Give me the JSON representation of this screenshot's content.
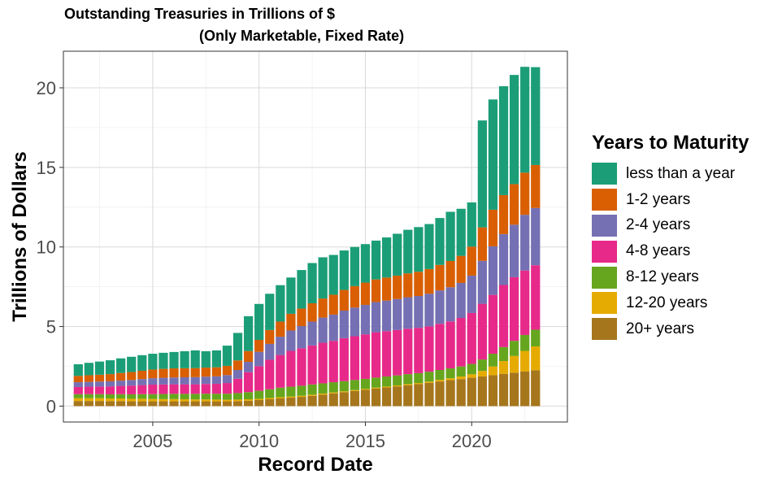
{
  "chart_data": {
    "type": "bar",
    "stacked": true,
    "title": "Outstanding Treasuries in Trillions of $",
    "subtitle": "(Only Marketable, Fixed Rate)",
    "xlabel": "Record Date",
    "ylabel": "Trillions of Dollars",
    "xlim": [
      2000.8,
      2024.5
    ],
    "ylim": [
      -1.0,
      22.3
    ],
    "x_ticks": [
      "2005",
      "2010",
      "2015",
      "2020"
    ],
    "y_ticks": [
      "0",
      "5",
      "10",
      "15",
      "20"
    ],
    "grid": true,
    "legend_position": "right",
    "legend_title": "Years to Maturity",
    "x": [
      2001.5,
      2002,
      2002.5,
      2003,
      2003.5,
      2004,
      2004.5,
      2005,
      2005.5,
      2006,
      2006.5,
      2007,
      2007.5,
      2008,
      2008.5,
      2009,
      2009.5,
      2010,
      2010.5,
      2011,
      2011.5,
      2012,
      2012.5,
      2013,
      2013.5,
      2014,
      2014.5,
      2015,
      2015.5,
      2016,
      2016.5,
      2017,
      2017.5,
      2018,
      2018.5,
      2019,
      2019.5,
      2020,
      2020.5,
      2021,
      2021.5,
      2022,
      2022.5,
      2023
    ],
    "series": [
      {
        "name": "20+ years",
        "color": "#A6761D",
        "values": [
          0.32,
          0.32,
          0.32,
          0.31,
          0.31,
          0.3,
          0.3,
          0.3,
          0.3,
          0.3,
          0.3,
          0.3,
          0.3,
          0.3,
          0.3,
          0.31,
          0.34,
          0.38,
          0.43,
          0.48,
          0.53,
          0.58,
          0.65,
          0.72,
          0.8,
          0.87,
          0.95,
          1.02,
          1.1,
          1.17,
          1.24,
          1.31,
          1.38,
          1.46,
          1.55,
          1.63,
          1.7,
          1.78,
          1.86,
          1.94,
          2.03,
          2.1,
          2.17,
          2.25
        ]
      },
      {
        "name": "12-20 years",
        "color": "#E6AB02",
        "values": [
          0.18,
          0.18,
          0.18,
          0.17,
          0.17,
          0.16,
          0.16,
          0.15,
          0.14,
          0.14,
          0.13,
          0.12,
          0.12,
          0.11,
          0.1,
          0.1,
          0.09,
          0.08,
          0.08,
          0.08,
          0.07,
          0.07,
          0.07,
          0.07,
          0.06,
          0.06,
          0.06,
          0.06,
          0.06,
          0.06,
          0.06,
          0.07,
          0.07,
          0.08,
          0.1,
          0.12,
          0.16,
          0.22,
          0.35,
          0.55,
          0.8,
          1.05,
          1.3,
          1.5
        ]
      },
      {
        "name": "8-12 years",
        "color": "#66A61E",
        "values": [
          0.25,
          0.25,
          0.25,
          0.26,
          0.27,
          0.28,
          0.29,
          0.3,
          0.32,
          0.33,
          0.34,
          0.35,
          0.36,
          0.37,
          0.38,
          0.41,
          0.45,
          0.5,
          0.55,
          0.6,
          0.62,
          0.63,
          0.64,
          0.64,
          0.64,
          0.64,
          0.63,
          0.63,
          0.63,
          0.63,
          0.63,
          0.63,
          0.62,
          0.62,
          0.62,
          0.62,
          0.63,
          0.65,
          0.72,
          0.8,
          0.88,
          0.95,
          1.0,
          1.05
        ]
      },
      {
        "name": "4-8 years",
        "color": "#E7298A",
        "values": [
          0.45,
          0.47,
          0.48,
          0.5,
          0.52,
          0.55,
          0.57,
          0.6,
          0.6,
          0.6,
          0.6,
          0.6,
          0.61,
          0.62,
          0.67,
          0.9,
          1.25,
          1.55,
          1.85,
          2.05,
          2.25,
          2.35,
          2.45,
          2.55,
          2.6,
          2.7,
          2.75,
          2.8,
          2.85,
          2.85,
          2.85,
          2.85,
          2.85,
          2.85,
          2.9,
          2.95,
          3.05,
          3.2,
          3.5,
          3.7,
          3.9,
          4.0,
          4.05,
          4.05
        ]
      },
      {
        "name": "2-4 years",
        "color": "#7570B3",
        "values": [
          0.3,
          0.3,
          0.31,
          0.32,
          0.33,
          0.35,
          0.38,
          0.4,
          0.42,
          0.43,
          0.44,
          0.45,
          0.46,
          0.47,
          0.5,
          0.55,
          0.65,
          0.9,
          1.0,
          1.15,
          1.28,
          1.4,
          1.5,
          1.58,
          1.65,
          1.73,
          1.8,
          1.85,
          1.9,
          1.92,
          1.95,
          1.98,
          2.0,
          2.05,
          2.1,
          2.15,
          2.2,
          2.35,
          2.7,
          3.05,
          3.2,
          3.3,
          3.5,
          3.6
        ]
      },
      {
        "name": "1-2 years",
        "color": "#D95F02",
        "values": [
          0.4,
          0.42,
          0.43,
          0.45,
          0.48,
          0.5,
          0.52,
          0.55,
          0.56,
          0.57,
          0.57,
          0.57,
          0.57,
          0.57,
          0.58,
          0.6,
          0.68,
          0.75,
          0.87,
          0.95,
          1.05,
          1.1,
          1.15,
          1.2,
          1.25,
          1.3,
          1.35,
          1.4,
          1.42,
          1.45,
          1.47,
          1.5,
          1.52,
          1.55,
          1.6,
          1.65,
          1.7,
          1.82,
          2.1,
          2.3,
          2.45,
          2.55,
          2.65,
          2.7
        ]
      },
      {
        "name": "less than a year",
        "color": "#1B9E77",
        "values": [
          0.73,
          0.78,
          0.83,
          0.87,
          0.92,
          0.96,
          0.98,
          0.99,
          1.01,
          1.03,
          1.07,
          1.11,
          1.03,
          1.06,
          1.27,
          1.73,
          2.19,
          2.26,
          2.28,
          2.29,
          2.28,
          2.42,
          2.53,
          2.59,
          2.5,
          2.48,
          2.46,
          2.42,
          2.44,
          2.52,
          2.63,
          2.74,
          2.81,
          2.83,
          2.95,
          3.09,
          2.96,
          2.78,
          6.72,
          6.93,
          6.84,
          6.86,
          6.65,
          6.15
        ]
      }
    ]
  }
}
